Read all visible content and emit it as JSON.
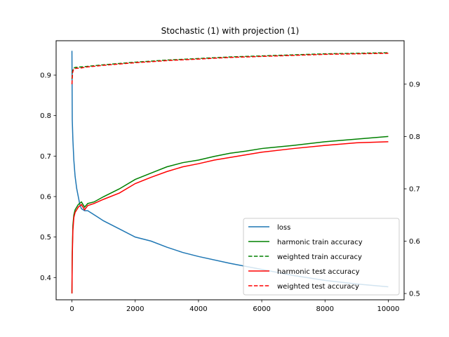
{
  "chart_data": {
    "type": "line",
    "title": "Stochastic (1) with projection (1)",
    "xlabel": "",
    "ylabel_left": "",
    "ylabel_right": "",
    "xlim": [
      -500,
      10500
    ],
    "ylim_left": [
      0.345,
      0.985
    ],
    "ylim_right": [
      0.488,
      0.983
    ],
    "x_ticks": [
      0,
      2000,
      4000,
      6000,
      8000,
      10000
    ],
    "y_ticks_left": [
      0.4,
      0.5,
      0.6,
      0.7,
      0.8,
      0.9
    ],
    "y_ticks_right": [
      0.5,
      0.6,
      0.7,
      0.8,
      0.9
    ],
    "grid": false,
    "legend_position": "lower right",
    "series": [
      {
        "name": "loss",
        "axis": "left",
        "color": "#1f77b4",
        "style": "solid",
        "points": [
          [
            0,
            0.96
          ],
          [
            10,
            0.79
          ],
          [
            30,
            0.74
          ],
          [
            60,
            0.69
          ],
          [
            100,
            0.65
          ],
          [
            150,
            0.62
          ],
          [
            200,
            0.6
          ],
          [
            250,
            0.58
          ],
          [
            300,
            0.57
          ],
          [
            400,
            0.565
          ],
          [
            500,
            0.565
          ],
          [
            600,
            0.56
          ],
          [
            800,
            0.55
          ],
          [
            1000,
            0.54
          ],
          [
            1500,
            0.52
          ],
          [
            2000,
            0.5
          ],
          [
            2500,
            0.49
          ],
          [
            3000,
            0.475
          ],
          [
            3500,
            0.462
          ],
          [
            4000,
            0.452
          ],
          [
            5000,
            0.435
          ],
          [
            6000,
            0.42
          ],
          [
            7000,
            0.405
          ],
          [
            8000,
            0.393
          ],
          [
            9000,
            0.384
          ],
          [
            10000,
            0.377
          ]
        ]
      },
      {
        "name": "harmonic train accuracy",
        "axis": "right",
        "color": "#008000",
        "style": "solid",
        "points": [
          [
            0,
            0.5
          ],
          [
            10,
            0.58
          ],
          [
            30,
            0.63
          ],
          [
            60,
            0.65
          ],
          [
            100,
            0.66
          ],
          [
            200,
            0.67
          ],
          [
            300,
            0.675
          ],
          [
            400,
            0.665
          ],
          [
            500,
            0.672
          ],
          [
            700,
            0.675
          ],
          [
            1000,
            0.685
          ],
          [
            1500,
            0.7
          ],
          [
            2000,
            0.718
          ],
          [
            2500,
            0.73
          ],
          [
            3000,
            0.742
          ],
          [
            3500,
            0.75
          ],
          [
            4000,
            0.755
          ],
          [
            4500,
            0.762
          ],
          [
            5000,
            0.768
          ],
          [
            5500,
            0.772
          ],
          [
            6000,
            0.777
          ],
          [
            7000,
            0.783
          ],
          [
            8000,
            0.79
          ],
          [
            9000,
            0.795
          ],
          [
            10000,
            0.8
          ]
        ]
      },
      {
        "name": "weighted train accuracy",
        "axis": "right",
        "color": "#008000",
        "style": "dashed",
        "points": [
          [
            0,
            0.91
          ],
          [
            20,
            0.925
          ],
          [
            50,
            0.93
          ],
          [
            100,
            0.932
          ],
          [
            300,
            0.933
          ],
          [
            500,
            0.934
          ],
          [
            1000,
            0.937
          ],
          [
            2000,
            0.942
          ],
          [
            3000,
            0.946
          ],
          [
            4000,
            0.949
          ],
          [
            5000,
            0.952
          ],
          [
            6000,
            0.954
          ],
          [
            7000,
            0.956
          ],
          [
            8000,
            0.958
          ],
          [
            9000,
            0.959
          ],
          [
            10000,
            0.96
          ]
        ]
      },
      {
        "name": "harmonic test accuracy",
        "axis": "right",
        "color": "#ff0000",
        "style": "solid",
        "points": [
          [
            0,
            0.5
          ],
          [
            10,
            0.57
          ],
          [
            30,
            0.62
          ],
          [
            60,
            0.645
          ],
          [
            100,
            0.655
          ],
          [
            200,
            0.665
          ],
          [
            300,
            0.67
          ],
          [
            400,
            0.66
          ],
          [
            500,
            0.668
          ],
          [
            700,
            0.672
          ],
          [
            1000,
            0.68
          ],
          [
            1500,
            0.692
          ],
          [
            2000,
            0.71
          ],
          [
            2500,
            0.722
          ],
          [
            3000,
            0.733
          ],
          [
            3500,
            0.742
          ],
          [
            4000,
            0.748
          ],
          [
            4500,
            0.755
          ],
          [
            5000,
            0.76
          ],
          [
            5500,
            0.765
          ],
          [
            6000,
            0.77
          ],
          [
            7000,
            0.777
          ],
          [
            8000,
            0.783
          ],
          [
            9000,
            0.788
          ],
          [
            10000,
            0.79
          ]
        ]
      },
      {
        "name": "weighted test accuracy",
        "axis": "right",
        "color": "#ff0000",
        "style": "dashed",
        "points": [
          [
            0,
            0.9
          ],
          [
            20,
            0.922
          ],
          [
            50,
            0.928
          ],
          [
            100,
            0.93
          ],
          [
            300,
            0.931
          ],
          [
            500,
            0.933
          ],
          [
            1000,
            0.936
          ],
          [
            2000,
            0.941
          ],
          [
            3000,
            0.945
          ],
          [
            4000,
            0.948
          ],
          [
            5000,
            0.951
          ],
          [
            6000,
            0.953
          ],
          [
            7000,
            0.955
          ],
          [
            8000,
            0.957
          ],
          [
            9000,
            0.958
          ],
          [
            10000,
            0.959
          ]
        ]
      }
    ]
  }
}
